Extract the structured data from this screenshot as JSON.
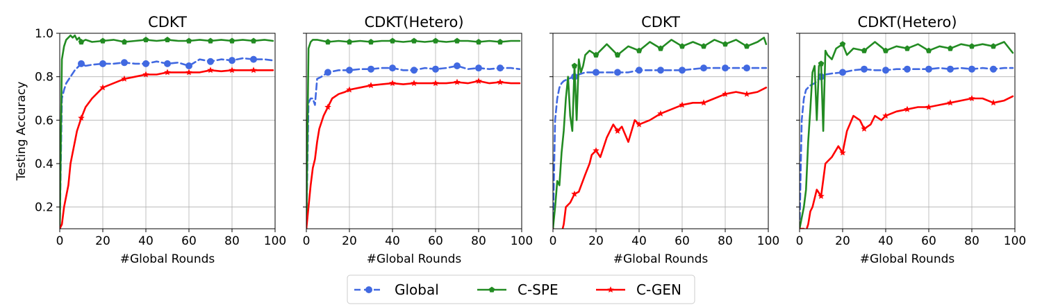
{
  "legend": {
    "placement": "bottom-center",
    "entries": [
      {
        "label": "Global",
        "color": "#4169e1",
        "dash": "dashed",
        "marker": "circle"
      },
      {
        "label": "C-SPE",
        "color": "#228b22",
        "dash": "solid",
        "marker": "pentagon"
      },
      {
        "label": "C-GEN",
        "color": "#ff0000",
        "dash": "solid",
        "marker": "star"
      }
    ]
  },
  "chart_data": [
    {
      "type": "line",
      "title": "CDKT",
      "xlabel": "#Global Rounds",
      "ylabel": "Testing Accuracy",
      "xlim": [
        0,
        100
      ],
      "ylim": [
        0.1,
        1.0
      ],
      "xticks": [
        "0",
        "20",
        "40",
        "60",
        "80",
        "100"
      ],
      "yticks": [
        "0.2",
        "0.4",
        "0.6",
        "0.8",
        "1.0"
      ],
      "grid": true,
      "series": [
        {
          "name": "Global",
          "x": [
            0,
            1,
            2,
            3,
            5,
            7,
            10,
            12,
            15,
            20,
            25,
            30,
            35,
            40,
            45,
            50,
            55,
            60,
            65,
            70,
            75,
            80,
            85,
            90,
            95,
            99
          ],
          "y": [
            0.1,
            0.7,
            0.74,
            0.77,
            0.8,
            0.83,
            0.86,
            0.85,
            0.855,
            0.86,
            0.86,
            0.865,
            0.86,
            0.86,
            0.87,
            0.86,
            0.865,
            0.85,
            0.88,
            0.87,
            0.88,
            0.875,
            0.885,
            0.88,
            0.88,
            0.875
          ]
        },
        {
          "name": "C-SPE",
          "x": [
            0,
            1,
            2,
            3,
            4,
            5,
            6,
            7,
            8,
            9,
            10,
            12,
            15,
            20,
            25,
            30,
            35,
            40,
            45,
            50,
            55,
            60,
            65,
            70,
            75,
            80,
            85,
            90,
            95,
            99
          ],
          "y": [
            0.1,
            0.88,
            0.94,
            0.97,
            0.98,
            0.99,
            0.98,
            0.99,
            0.97,
            0.98,
            0.96,
            0.97,
            0.96,
            0.965,
            0.97,
            0.96,
            0.965,
            0.97,
            0.965,
            0.97,
            0.965,
            0.965,
            0.97,
            0.965,
            0.97,
            0.965,
            0.97,
            0.965,
            0.97,
            0.965
          ]
        },
        {
          "name": "C-GEN",
          "x": [
            0,
            1,
            2,
            3,
            4,
            5,
            6,
            7,
            8,
            10,
            12,
            15,
            18,
            20,
            25,
            30,
            35,
            40,
            45,
            50,
            55,
            60,
            65,
            70,
            75,
            80,
            85,
            90,
            95,
            99
          ],
          "y": [
            0.1,
            0.12,
            0.2,
            0.25,
            0.3,
            0.4,
            0.45,
            0.5,
            0.55,
            0.61,
            0.66,
            0.7,
            0.73,
            0.75,
            0.77,
            0.79,
            0.8,
            0.81,
            0.81,
            0.82,
            0.82,
            0.82,
            0.82,
            0.83,
            0.825,
            0.83,
            0.83,
            0.83,
            0.83,
            0.83
          ]
        }
      ]
    },
    {
      "type": "line",
      "title": "CDKT(Hetero)",
      "xlabel": "#Global Rounds",
      "ylabel": "",
      "xlim": [
        0,
        100
      ],
      "ylim": [
        0.1,
        1.0
      ],
      "xticks": [
        "0",
        "20",
        "40",
        "60",
        "80",
        "100"
      ],
      "yticks": [],
      "grid": true,
      "series": [
        {
          "name": "Global",
          "x": [
            0,
            1,
            2,
            3,
            4,
            5,
            7,
            10,
            15,
            20,
            25,
            30,
            35,
            40,
            45,
            50,
            55,
            60,
            65,
            70,
            75,
            80,
            85,
            90,
            95,
            99
          ],
          "y": [
            0.1,
            0.68,
            0.7,
            0.7,
            0.67,
            0.79,
            0.8,
            0.82,
            0.83,
            0.83,
            0.835,
            0.835,
            0.84,
            0.84,
            0.83,
            0.83,
            0.84,
            0.835,
            0.84,
            0.85,
            0.835,
            0.84,
            0.835,
            0.84,
            0.84,
            0.835
          ]
        },
        {
          "name": "C-SPE",
          "x": [
            0,
            1,
            2,
            3,
            5,
            10,
            15,
            20,
            25,
            30,
            35,
            40,
            45,
            50,
            55,
            60,
            65,
            70,
            75,
            80,
            85,
            90,
            95,
            99
          ],
          "y": [
            0.1,
            0.93,
            0.96,
            0.97,
            0.97,
            0.96,
            0.965,
            0.96,
            0.965,
            0.96,
            0.965,
            0.965,
            0.96,
            0.965,
            0.96,
            0.965,
            0.96,
            0.965,
            0.965,
            0.96,
            0.965,
            0.96,
            0.965,
            0.965
          ]
        },
        {
          "name": "C-GEN",
          "x": [
            0,
            1,
            2,
            3,
            4,
            5,
            6,
            8,
            10,
            12,
            15,
            18,
            20,
            25,
            30,
            35,
            40,
            45,
            50,
            55,
            60,
            65,
            70,
            75,
            80,
            85,
            90,
            95,
            99
          ],
          "y": [
            0.1,
            0.2,
            0.3,
            0.38,
            0.42,
            0.5,
            0.56,
            0.62,
            0.66,
            0.7,
            0.72,
            0.73,
            0.74,
            0.75,
            0.76,
            0.765,
            0.77,
            0.765,
            0.77,
            0.77,
            0.77,
            0.77,
            0.775,
            0.77,
            0.78,
            0.77,
            0.775,
            0.77,
            0.77
          ]
        }
      ]
    },
    {
      "type": "line",
      "title": "CDKT",
      "xlabel": "#Global Rounds",
      "ylabel": "",
      "xlim": [
        0,
        100
      ],
      "ylim": [
        0.1,
        1.0
      ],
      "xticks": [
        "0",
        "20",
        "40",
        "60",
        "80",
        "100"
      ],
      "yticks": [],
      "grid": true,
      "series": [
        {
          "name": "Global",
          "x": [
            0,
            1,
            2,
            3,
            4,
            5,
            7,
            10,
            12,
            15,
            20,
            25,
            30,
            35,
            40,
            45,
            50,
            55,
            60,
            65,
            70,
            75,
            80,
            85,
            90,
            95,
            99
          ],
          "y": [
            0.1,
            0.6,
            0.7,
            0.75,
            0.77,
            0.78,
            0.79,
            0.8,
            0.81,
            0.82,
            0.82,
            0.82,
            0.82,
            0.82,
            0.83,
            0.83,
            0.83,
            0.83,
            0.83,
            0.835,
            0.84,
            0.84,
            0.84,
            0.84,
            0.84,
            0.84,
            0.84
          ]
        },
        {
          "name": "C-SPE",
          "x": [
            0,
            1,
            2,
            3,
            4,
            5,
            6,
            7,
            8,
            9,
            10,
            11,
            12,
            13,
            14,
            15,
            17,
            20,
            25,
            30,
            35,
            40,
            45,
            50,
            55,
            60,
            65,
            70,
            75,
            80,
            85,
            90,
            95,
            98,
            99
          ],
          "y": [
            0.1,
            0.2,
            0.32,
            0.3,
            0.45,
            0.55,
            0.7,
            0.8,
            0.62,
            0.55,
            0.85,
            0.6,
            0.88,
            0.82,
            0.85,
            0.9,
            0.92,
            0.9,
            0.95,
            0.9,
            0.94,
            0.92,
            0.96,
            0.93,
            0.97,
            0.94,
            0.96,
            0.94,
            0.97,
            0.95,
            0.97,
            0.94,
            0.96,
            0.98,
            0.95
          ]
        },
        {
          "name": "C-GEN",
          "x": [
            0,
            1,
            2,
            3,
            4,
            5,
            6,
            8,
            10,
            12,
            15,
            17,
            18,
            20,
            22,
            25,
            28,
            30,
            32,
            35,
            38,
            40,
            45,
            50,
            55,
            60,
            65,
            70,
            75,
            80,
            85,
            90,
            95,
            99
          ],
          "y": [
            0.1,
            0.05,
            0.07,
            0.06,
            0.08,
            0.12,
            0.2,
            0.22,
            0.26,
            0.27,
            0.35,
            0.4,
            0.44,
            0.46,
            0.43,
            0.52,
            0.58,
            0.55,
            0.57,
            0.5,
            0.6,
            0.58,
            0.6,
            0.63,
            0.65,
            0.67,
            0.68,
            0.68,
            0.7,
            0.72,
            0.73,
            0.72,
            0.73,
            0.75
          ]
        }
      ]
    },
    {
      "type": "line",
      "title": "CDKT(Hetero)",
      "xlabel": "#Global Rounds",
      "ylabel": "",
      "xlim": [
        0,
        100
      ],
      "ylim": [
        0.1,
        1.0
      ],
      "xticks": [
        "0",
        "20",
        "40",
        "60",
        "80",
        "100"
      ],
      "yticks": [],
      "grid": true,
      "series": [
        {
          "name": "Global",
          "x": [
            0,
            1,
            2,
            3,
            4,
            5,
            7,
            10,
            12,
            15,
            20,
            25,
            30,
            35,
            40,
            45,
            50,
            55,
            60,
            65,
            70,
            75,
            80,
            85,
            90,
            95,
            99
          ],
          "y": [
            0.1,
            0.6,
            0.7,
            0.74,
            0.75,
            0.76,
            0.77,
            0.8,
            0.81,
            0.815,
            0.82,
            0.83,
            0.835,
            0.83,
            0.83,
            0.835,
            0.835,
            0.835,
            0.835,
            0.84,
            0.835,
            0.84,
            0.835,
            0.84,
            0.835,
            0.84,
            0.84
          ]
        },
        {
          "name": "C-SPE",
          "x": [
            0,
            1,
            2,
            3,
            4,
            5,
            6,
            7,
            8,
            9,
            10,
            11,
            12,
            13,
            15,
            17,
            20,
            22,
            25,
            30,
            35,
            40,
            45,
            50,
            55,
            60,
            65,
            70,
            75,
            80,
            85,
            90,
            95,
            99
          ],
          "y": [
            0.1,
            0.15,
            0.2,
            0.28,
            0.5,
            0.65,
            0.82,
            0.85,
            0.6,
            0.85,
            0.86,
            0.55,
            0.92,
            0.9,
            0.88,
            0.93,
            0.95,
            0.9,
            0.93,
            0.92,
            0.96,
            0.92,
            0.94,
            0.93,
            0.95,
            0.92,
            0.94,
            0.93,
            0.95,
            0.94,
            0.95,
            0.94,
            0.96,
            0.91
          ]
        },
        {
          "name": "C-GEN",
          "x": [
            0,
            1,
            2,
            3,
            4,
            5,
            6,
            8,
            10,
            12,
            15,
            18,
            20,
            22,
            25,
            28,
            30,
            33,
            35,
            38,
            40,
            45,
            50,
            55,
            60,
            65,
            70,
            75,
            80,
            85,
            90,
            95,
            99
          ],
          "y": [
            0.1,
            0.1,
            0.1,
            0.09,
            0.12,
            0.18,
            0.2,
            0.28,
            0.25,
            0.4,
            0.43,
            0.48,
            0.45,
            0.55,
            0.62,
            0.6,
            0.56,
            0.58,
            0.62,
            0.6,
            0.62,
            0.64,
            0.65,
            0.66,
            0.66,
            0.67,
            0.68,
            0.69,
            0.7,
            0.7,
            0.68,
            0.69,
            0.71
          ]
        }
      ]
    }
  ]
}
